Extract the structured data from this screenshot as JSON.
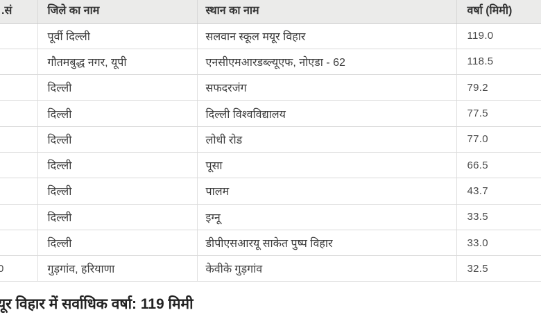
{
  "table": {
    "headers": {
      "serial": ".सं",
      "district": "जिले का नाम",
      "place": "स्थान का नाम",
      "rainfall": "वर्षा (मिमी)"
    },
    "rows": [
      {
        "sno": "",
        "district": "पूर्वी दिल्ली",
        "place": "सलवान स्कूल मयूर विहार",
        "rainfall": "119.0"
      },
      {
        "sno": "",
        "district": "गौतमबुद्ध नगर, यूपी",
        "place": "एनसीएमआरडब्ल्यूएफ, नोएडा - 62",
        "rainfall": "118.5"
      },
      {
        "sno": "",
        "district": "दिल्ली",
        "place": "सफदरजंग",
        "rainfall": "79.2"
      },
      {
        "sno": "",
        "district": "दिल्ली",
        "place": "दिल्ली विश्वविद्यालय",
        "rainfall": "77.5"
      },
      {
        "sno": "",
        "district": "दिल्ली",
        "place": "लोधी रोड",
        "rainfall": "77.0"
      },
      {
        "sno": "",
        "district": "दिल्ली",
        "place": "पूसा",
        "rainfall": "66.5"
      },
      {
        "sno": "",
        "district": "दिल्ली",
        "place": "पालम",
        "rainfall": "43.7"
      },
      {
        "sno": "",
        "district": "दिल्ली",
        "place": "इग्नू",
        "rainfall": "33.5"
      },
      {
        "sno": "",
        "district": "दिल्ली",
        "place": "डीपीएसआरयू साकेत पुष्प विहार",
        "rainfall": "33.0"
      },
      {
        "sno": "0",
        "district": "गुड़गांव, हरियाणा",
        "place": "केवीके गुड़गांव",
        "rainfall": "32.5"
      }
    ]
  },
  "summary": {
    "text": "यूर विहार में सर्वाधिक वर्षा: 119 मिमी"
  },
  "colors": {
    "header_background": "#ebebea",
    "row_background": "#ffffff",
    "border": "#dadada",
    "header_text": "#333333",
    "body_text": "#3d3d3d",
    "summary_text": "#222222"
  }
}
